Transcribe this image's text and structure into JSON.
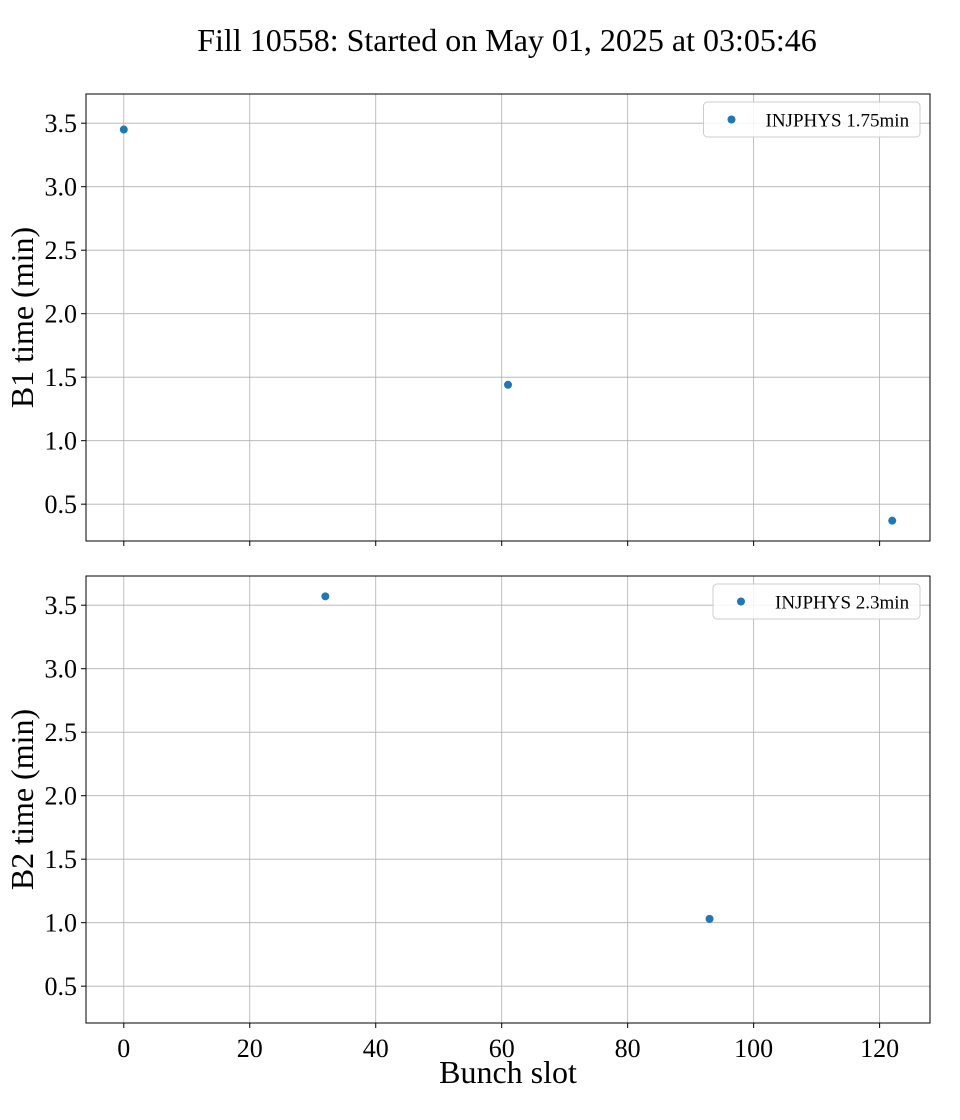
{
  "title": "Fill 10558: Started on May 01, 2025 at 03:05:46",
  "colors": {
    "series": "#1f77b4",
    "grid": "#b0b0b0",
    "axes": "#000000"
  },
  "chart_data": [
    {
      "type": "scatter",
      "ylabel": "B1 time (min)",
      "xlim": [
        -6,
        128
      ],
      "ylim": [
        0.21,
        3.73
      ],
      "xticks": [
        0,
        20,
        40,
        60,
        80,
        100,
        120
      ],
      "yticks": [
        0.5,
        1.0,
        1.5,
        2.0,
        2.5,
        3.0,
        3.5
      ],
      "show_xticklabels": false,
      "grid": true,
      "legend_position": "top-right",
      "series": [
        {
          "name": "INJPHYS 1.75min",
          "x": [
            0,
            61,
            122
          ],
          "y": [
            3.45,
            1.44,
            0.37
          ]
        }
      ]
    },
    {
      "type": "scatter",
      "ylabel": "B2 time (min)",
      "xlabel": "Bunch slot",
      "xlim": [
        -6,
        128
      ],
      "ylim": [
        0.21,
        3.73
      ],
      "xticks": [
        0,
        20,
        40,
        60,
        80,
        100,
        120
      ],
      "yticks": [
        0.5,
        1.0,
        1.5,
        2.0,
        2.5,
        3.0,
        3.5
      ],
      "show_xticklabels": true,
      "grid": true,
      "legend_position": "top-right",
      "series": [
        {
          "name": "INJPHYS 2.3min",
          "x": [
            32,
            93
          ],
          "y": [
            3.57,
            1.03
          ]
        }
      ]
    }
  ]
}
